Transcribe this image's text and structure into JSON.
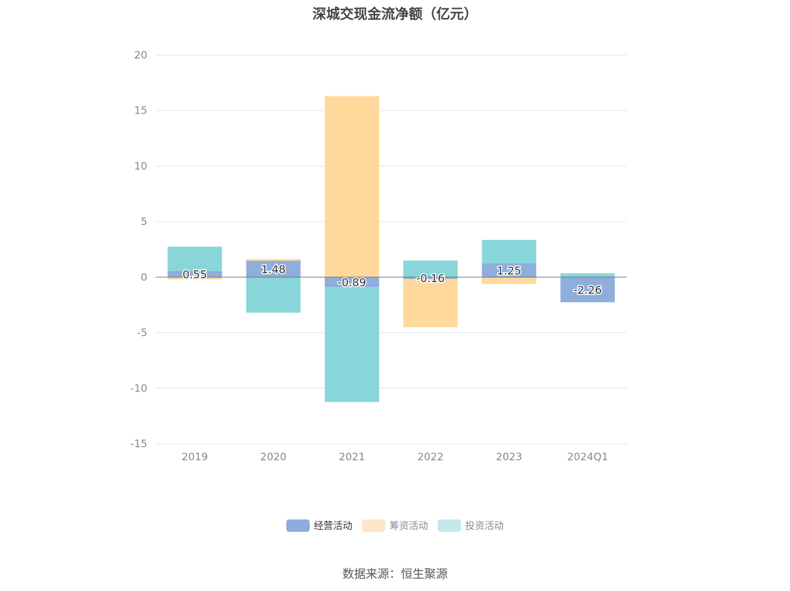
{
  "chart_data": {
    "type": "bar",
    "stacked": true,
    "title": "深城交现金流净额（亿元）",
    "categories": [
      "2019",
      "2020",
      "2021",
      "2022",
      "2023",
      "2024Q1"
    ],
    "ylim": [
      -15,
      20
    ],
    "yticks": [
      20,
      15,
      10,
      5,
      0,
      -5,
      -10,
      -15
    ],
    "grid": true,
    "legend_position": "bottom",
    "series": [
      {
        "name": "经营活动",
        "color": "#8eaedd",
        "values": [
          0.55,
          1.48,
          -0.89,
          -0.16,
          1.25,
          -2.26
        ]
      },
      {
        "name": "筹资活动",
        "color": "#ffd99b",
        "values": [
          -0.2,
          0.15,
          16.3,
          -4.35,
          -0.6,
          0
        ]
      },
      {
        "name": "投资活动",
        "color": "#88d6da",
        "values": [
          2.2,
          -3.2,
          -10.35,
          1.5,
          2.1,
          0.35
        ]
      }
    ],
    "data_labels": [
      "0.55",
      "1.48",
      "-0.89",
      "-0.16",
      "1.25",
      "-2.26"
    ]
  },
  "legend": {
    "items": [
      {
        "label": "经营活动",
        "swatch": "#8eaedd",
        "text_color": "#333333"
      },
      {
        "label": "筹资活动",
        "swatch": "#fde6c5",
        "text_color": "#888888"
      },
      {
        "label": "投资活动",
        "swatch": "#c2e8ea",
        "text_color": "#888888"
      }
    ]
  },
  "footer": {
    "source": "数据来源：恒生聚源"
  }
}
